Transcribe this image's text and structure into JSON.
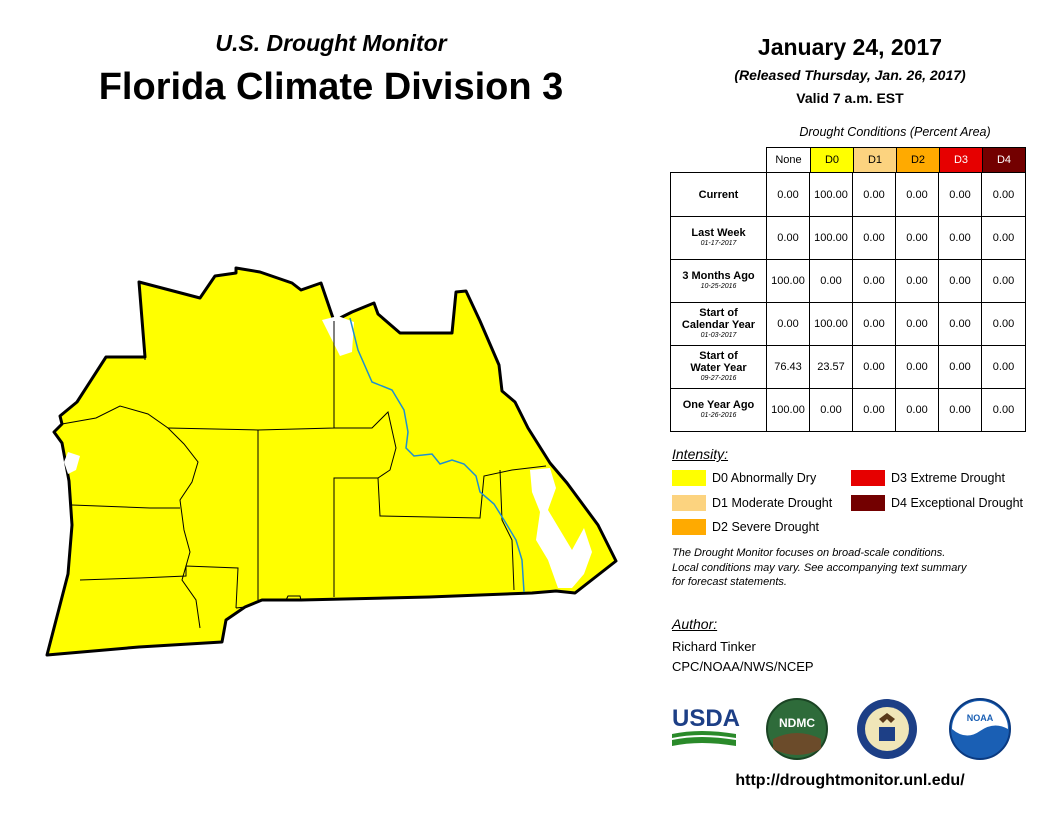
{
  "header": {
    "subtitle": "U.S. Drought Monitor",
    "title": "Florida Climate Division 3",
    "date": "January 24, 2017",
    "released": "(Released Thursday, Jan. 26, 2017)",
    "valid": "Valid 7 a.m. EST"
  },
  "table": {
    "caption": "Drought Conditions (Percent Area)",
    "columns": [
      {
        "label": "None",
        "color": "#ffffff",
        "text_color": "#000000"
      },
      {
        "label": "D0",
        "color": "#ffff00",
        "text_color": "#000000"
      },
      {
        "label": "D1",
        "color": "#fcd37f",
        "text_color": "#000000"
      },
      {
        "label": "D2",
        "color": "#ffaa00",
        "text_color": "#000000"
      },
      {
        "label": "D3",
        "color": "#e60000",
        "text_color": "#ffffff"
      },
      {
        "label": "D4",
        "color": "#730000",
        "text_color": "#ffffff"
      }
    ],
    "rows": [
      {
        "label_lines": [
          "Current"
        ],
        "date": "",
        "values": [
          "0.00",
          "100.00",
          "0.00",
          "0.00",
          "0.00",
          "0.00"
        ]
      },
      {
        "label_lines": [
          "Last Week"
        ],
        "date": "01-17-2017",
        "values": [
          "0.00",
          "100.00",
          "0.00",
          "0.00",
          "0.00",
          "0.00"
        ]
      },
      {
        "label_lines": [
          "3 Months Ago"
        ],
        "date": "10-25-2016",
        "values": [
          "100.00",
          "0.00",
          "0.00",
          "0.00",
          "0.00",
          "0.00"
        ]
      },
      {
        "label_lines": [
          "Start of",
          "Calendar Year"
        ],
        "date": "01-03-2017",
        "values": [
          "0.00",
          "100.00",
          "0.00",
          "0.00",
          "0.00",
          "0.00"
        ]
      },
      {
        "label_lines": [
          "Start of",
          "Water Year"
        ],
        "date": "09-27-2016",
        "values": [
          "76.43",
          "23.57",
          "0.00",
          "0.00",
          "0.00",
          "0.00"
        ]
      },
      {
        "label_lines": [
          "One Year Ago"
        ],
        "date": "01-26-2016",
        "values": [
          "100.00",
          "0.00",
          "0.00",
          "0.00",
          "0.00",
          "0.00"
        ]
      }
    ]
  },
  "legend": {
    "heading": "Intensity:",
    "items": [
      {
        "label": "D0 Abnormally Dry",
        "color": "#ffff00"
      },
      {
        "label": "D1 Moderate Drought",
        "color": "#fcd37f"
      },
      {
        "label": "D2 Severe Drought",
        "color": "#ffaa00"
      },
      {
        "label": "D3 Extreme Drought",
        "color": "#e60000"
      },
      {
        "label": "D4 Exceptional Drought",
        "color": "#730000"
      }
    ]
  },
  "note": {
    "line1": "The Drought Monitor focuses on broad-scale conditions.",
    "line2": "Local conditions may vary. See accompanying text summary",
    "line3": "for forecast statements."
  },
  "author": {
    "heading": "Author:",
    "name": "Richard Tinker",
    "org": "CPC/NOAA/NWS/NCEP"
  },
  "logos": {
    "usda": "USDA",
    "ndmc": "NDMC",
    "noaa": "NOAA"
  },
  "map": {
    "fill_color": "#ffff00",
    "border_color": "#000000",
    "river_color": "#1f8fd0",
    "category": "D0"
  },
  "footer": {
    "url": "http://droughtmonitor.unl.edu/"
  }
}
